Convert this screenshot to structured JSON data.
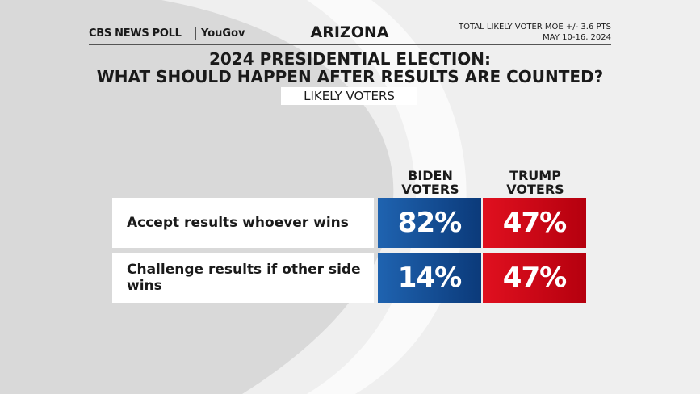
{
  "header": {
    "brand": "CBS NEWS POLL",
    "partner": "YouGov",
    "state": "ARIZONA",
    "moe": "TOTAL LIKELY VOTER MOE +/- 3.6 PTS",
    "dates": "MAY 10-16, 2024"
  },
  "title": [
    "2024 PRESIDENTIAL ELECTION:",
    "WHAT SHOULD HAPPEN AFTER RESULTS ARE COUNTED?"
  ],
  "subtitle": "LIKELY VOTERS",
  "table": {
    "columns": [
      "BIDEN VOTERS",
      "TRUMP VOTERS"
    ],
    "rows": [
      {
        "label": "Accept results whoever wins",
        "cells": [
          "82%",
          "47%"
        ]
      },
      {
        "label": "Challenge results if other side wins",
        "cells": [
          "14%",
          "47%"
        ]
      }
    ]
  }
}
